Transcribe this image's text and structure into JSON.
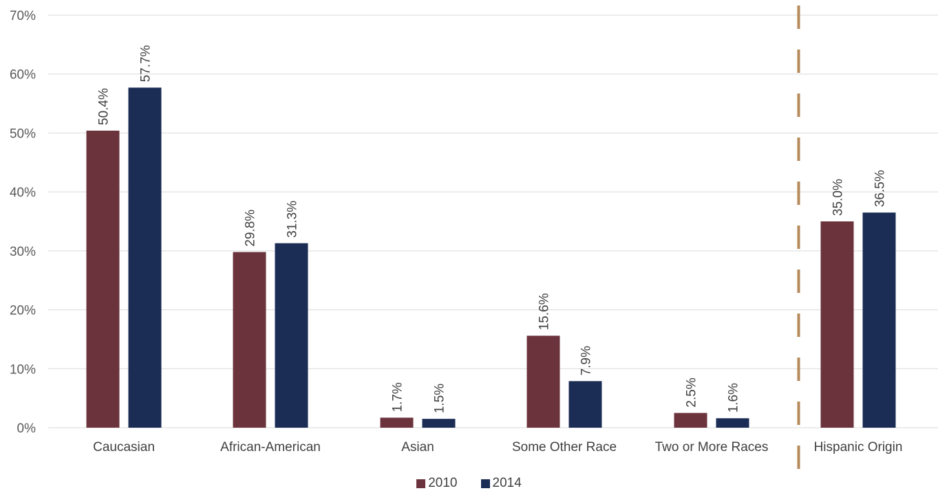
{
  "chart_data": {
    "type": "bar",
    "categories": [
      "Caucasian",
      "African-American",
      "Asian",
      "Some Other Race",
      "Two or More Races",
      "Hispanic Origin"
    ],
    "series": [
      {
        "name": "2010",
        "values": [
          50.4,
          29.8,
          1.7,
          15.6,
          2.5,
          35.0
        ],
        "labels": [
          "50.4%",
          "29.8%",
          "1.7%",
          "15.6%",
          "2.5%",
          "35.0%"
        ],
        "color": "#6b333c"
      },
      {
        "name": "2014",
        "values": [
          57.7,
          31.3,
          1.5,
          7.9,
          1.6,
          36.5
        ],
        "labels": [
          "57.7%",
          "31.3%",
          "1.5%",
          "7.9%",
          "1.6%",
          "36.5%"
        ],
        "color": "#1b2c55"
      }
    ],
    "yticks": [
      "0%",
      "10%",
      "20%",
      "30%",
      "40%",
      "50%",
      "60%",
      "70%"
    ],
    "ylim": [
      0,
      70
    ],
    "grid": true,
    "legend_position": "bottom",
    "separator": {
      "between": [
        "Two or More Races",
        "Hispanic Origin"
      ],
      "style": "dashed",
      "color": "#b5895a"
    }
  }
}
